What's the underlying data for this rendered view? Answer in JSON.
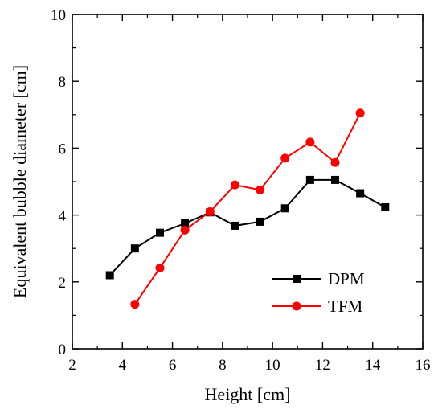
{
  "chart_data": {
    "type": "line",
    "title": "",
    "xlabel": "Height [cm]",
    "ylabel": "Equivalent bubble diameter [cm]",
    "xlim": [
      2,
      16
    ],
    "ylim": [
      0,
      10
    ],
    "xticks": [
      2,
      4,
      6,
      8,
      10,
      12,
      14,
      16
    ],
    "yticks": [
      0,
      2,
      4,
      6,
      8,
      10
    ],
    "grid": false,
    "legend_position": "bottom-right",
    "series": [
      {
        "name": "DPM",
        "color": "#000000",
        "marker": "square",
        "x": [
          3.5,
          4.5,
          5.5,
          6.5,
          7.5,
          8.5,
          9.5,
          10.5,
          11.5,
          12.5,
          13.5,
          14.5
        ],
        "y": [
          2.2,
          3.0,
          3.47,
          3.75,
          4.08,
          3.68,
          3.8,
          4.2,
          5.05,
          5.05,
          4.65,
          4.23
        ]
      },
      {
        "name": "TFM",
        "color": "#ff0000",
        "marker": "circle",
        "x": [
          4.5,
          5.5,
          6.5,
          7.5,
          8.5,
          9.5,
          10.5,
          11.5,
          12.5,
          13.5
        ],
        "y": [
          1.33,
          2.42,
          3.55,
          4.1,
          4.9,
          4.75,
          5.7,
          6.18,
          5.57,
          7.05
        ]
      }
    ]
  }
}
